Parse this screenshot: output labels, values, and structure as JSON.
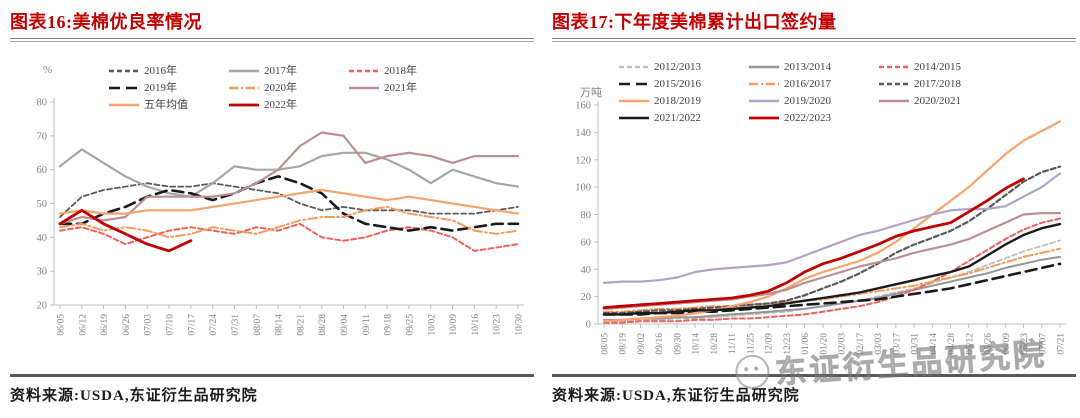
{
  "page": {
    "background": "#ffffff",
    "accent_red": "#c00000",
    "axis_color": "#bfbfbf",
    "tick_label_color": "#808080"
  },
  "watermark": {
    "text": "东证衍生品研究院",
    "icon": "wechat-icon"
  },
  "panels": [
    {
      "title": "图表16:美棉优良率情况",
      "source": "资料来源:USDA,东证衍生品研究院"
    },
    {
      "title": "图表17:下年度美棉累计出口签约量",
      "source": "资料来源:USDA,东证衍生品研究院"
    }
  ],
  "chart_data": [
    {
      "type": "line",
      "title": "美棉优良率情况",
      "ylabel": "%",
      "ylim": [
        20,
        80
      ],
      "ytick_step": 10,
      "grid": false,
      "legend_position": "top-inside",
      "x": [
        "06/05",
        "06/12",
        "06/19",
        "06/26",
        "07/03",
        "07/10",
        "07/17",
        "07/24",
        "07/31",
        "08/07",
        "08/14",
        "08/21",
        "08/28",
        "09/04",
        "09/11",
        "09/18",
        "09/25",
        "10/02",
        "10/09",
        "10/16",
        "10/23",
        "10/30"
      ],
      "series": [
        {
          "name": "2016年",
          "color": "#595959",
          "style": "dash",
          "width": 1.8,
          "values": [
            46,
            52,
            54,
            55,
            56,
            55,
            55,
            56,
            55,
            54,
            53,
            50,
            48,
            49,
            48,
            48,
            48,
            47,
            47,
            47,
            48,
            49
          ]
        },
        {
          "name": "2017年",
          "color": "#a6a6a6",
          "style": "solid",
          "width": 2.2,
          "values": [
            61,
            66,
            62,
            58,
            55,
            53,
            52,
            56,
            61,
            60,
            60,
            61,
            64,
            65,
            65,
            63,
            60,
            56,
            60,
            58,
            56,
            55
          ]
        },
        {
          "name": "2018年",
          "color": "#f0615c",
          "style": "dash",
          "width": 2,
          "values": [
            42,
            43,
            41,
            38,
            40,
            42,
            43,
            42,
            41,
            43,
            42,
            44,
            40,
            39,
            40,
            42,
            43,
            42,
            40,
            36,
            37,
            38
          ]
        },
        {
          "name": "2019年",
          "color": "#1a1a1a",
          "style": "longdash",
          "width": 2.6,
          "values": [
            44,
            44,
            47,
            49,
            52,
            54,
            53,
            51,
            53,
            56,
            58,
            56,
            53,
            47,
            44,
            43,
            42,
            43,
            42,
            43,
            44,
            44
          ]
        },
        {
          "name": "2020年",
          "color": "#f79a5e",
          "style": "dashdot",
          "width": 2,
          "values": [
            43,
            44,
            42,
            43,
            42,
            40,
            41,
            43,
            42,
            41,
            43,
            45,
            46,
            46,
            48,
            49,
            47,
            46,
            45,
            42,
            41,
            42
          ]
        },
        {
          "name": "2021年",
          "color": "#bd8e91",
          "style": "solid",
          "width": 2.2,
          "values": [
            44,
            46,
            45,
            46,
            52,
            52,
            52,
            52,
            53,
            56,
            60,
            67,
            71,
            70,
            62,
            64,
            65,
            64,
            62,
            64,
            64,
            64
          ]
        },
        {
          "name": "五年均值",
          "color": "#f8a26c",
          "style": "solid",
          "width": 2.2,
          "values": [
            47,
            48,
            47,
            47,
            48,
            48,
            48,
            49,
            50,
            51,
            52,
            53,
            54,
            53,
            52,
            51,
            52,
            51,
            50,
            49,
            48,
            47
          ]
        },
        {
          "name": "2022年",
          "color": "#c00000",
          "style": "solid",
          "width": 2.8,
          "values": [
            44,
            48,
            44,
            41,
            38,
            36,
            39
          ]
        }
      ]
    },
    {
      "type": "line",
      "title": "下年度美棉累计出口签约量",
      "ylabel": "万吨",
      "ylim": [
        0,
        160
      ],
      "ytick_step": 20,
      "grid": false,
      "legend_position": "top-inside",
      "x": [
        "08/05",
        "08/19",
        "09/02",
        "09/16",
        "09/30",
        "10/14",
        "10/28",
        "11/11",
        "11/25",
        "12/09",
        "12/23",
        "01/06",
        "01/20",
        "02/03",
        "02/17",
        "03/03",
        "03/17",
        "03/31",
        "04/14",
        "04/28",
        "05/12",
        "05/26",
        "06/09",
        "06/23",
        "07/07",
        "07/21"
      ],
      "series": [
        {
          "name": "2012/2013",
          "color": "#bfbfbf",
          "style": "dash",
          "width": 1.8,
          "values": [
            2,
            2,
            3,
            3,
            4,
            4,
            5,
            6,
            7,
            8,
            9,
            11,
            13,
            15,
            17,
            20,
            23,
            26,
            30,
            34,
            38,
            43,
            48,
            53,
            57,
            61
          ]
        },
        {
          "name": "2013/2014",
          "color": "#969696",
          "style": "solid",
          "width": 2,
          "values": [
            3,
            3,
            4,
            4,
            5,
            5,
            6,
            7,
            8,
            9,
            10,
            11,
            13,
            15,
            17,
            19,
            22,
            25,
            28,
            31,
            34,
            37,
            41,
            44,
            47,
            49
          ]
        },
        {
          "name": "2014/2015",
          "color": "#f0615c",
          "style": "dash",
          "width": 2,
          "values": [
            1,
            1,
            2,
            2,
            2,
            3,
            3,
            4,
            4,
            5,
            6,
            7,
            9,
            11,
            13,
            16,
            20,
            25,
            31,
            38,
            46,
            54,
            62,
            69,
            74,
            77
          ]
        },
        {
          "name": "2015/2016",
          "color": "#1a1a1a",
          "style": "longdash",
          "width": 2.6,
          "values": [
            7,
            7,
            7,
            8,
            8,
            9,
            9,
            10,
            11,
            12,
            13,
            14,
            15,
            16,
            17,
            18,
            20,
            22,
            24,
            26,
            29,
            32,
            35,
            38,
            41,
            44
          ]
        },
        {
          "name": "2016/2017",
          "color": "#f79a5e",
          "style": "dashdot",
          "width": 2,
          "values": [
            9,
            9,
            10,
            11,
            11,
            12,
            13,
            13,
            14,
            15,
            16,
            17,
            18,
            20,
            22,
            24,
            26,
            28,
            31,
            34,
            37,
            41,
            45,
            49,
            52,
            55
          ]
        },
        {
          "name": "2017/2018",
          "color": "#595959",
          "style": "dash",
          "width": 2.2,
          "values": [
            8,
            8,
            9,
            10,
            10,
            11,
            12,
            13,
            14,
            15,
            17,
            21,
            26,
            31,
            37,
            44,
            52,
            58,
            63,
            68,
            75,
            84,
            94,
            104,
            111,
            115
          ]
        },
        {
          "name": "2018/2019",
          "color": "#f8a26c",
          "style": "solid",
          "width": 2.2,
          "values": [
            2,
            3,
            4,
            5,
            6,
            8,
            10,
            13,
            16,
            20,
            26,
            33,
            38,
            42,
            46,
            52,
            60,
            70,
            80,
            90,
            100,
            112,
            124,
            134,
            141,
            148
          ]
        },
        {
          "name": "2019/2020",
          "color": "#b3a2c7",
          "style": "solid",
          "width": 2.2,
          "values": [
            30,
            31,
            31,
            32,
            34,
            38,
            40,
            41,
            42,
            43,
            45,
            50,
            55,
            60,
            65,
            68,
            72,
            76,
            80,
            83,
            84,
            84,
            86,
            93,
            100,
            110
          ]
        },
        {
          "name": "2020/2021",
          "color": "#bd8e91",
          "style": "solid",
          "width": 2.2,
          "values": [
            11,
            12,
            13,
            14,
            15,
            16,
            17,
            18,
            20,
            22,
            25,
            30,
            34,
            38,
            42,
            45,
            48,
            52,
            55,
            58,
            62,
            68,
            74,
            80,
            81,
            81
          ]
        },
        {
          "name": "2021/2022",
          "color": "#1a1a1a",
          "style": "solid",
          "width": 2.4,
          "values": [
            7,
            7,
            8,
            8,
            9,
            10,
            10,
            11,
            12,
            13,
            15,
            17,
            19,
            21,
            23,
            26,
            29,
            32,
            35,
            38,
            42,
            50,
            58,
            65,
            70,
            73
          ]
        },
        {
          "name": "2022/2023",
          "color": "#c00000",
          "style": "solid",
          "width": 2.8,
          "values": [
            12,
            13,
            14,
            15,
            16,
            17,
            18,
            19,
            21,
            24,
            30,
            38,
            44,
            48,
            53,
            58,
            64,
            68,
            71,
            74,
            82,
            90,
            99,
            106
          ]
        }
      ]
    }
  ]
}
